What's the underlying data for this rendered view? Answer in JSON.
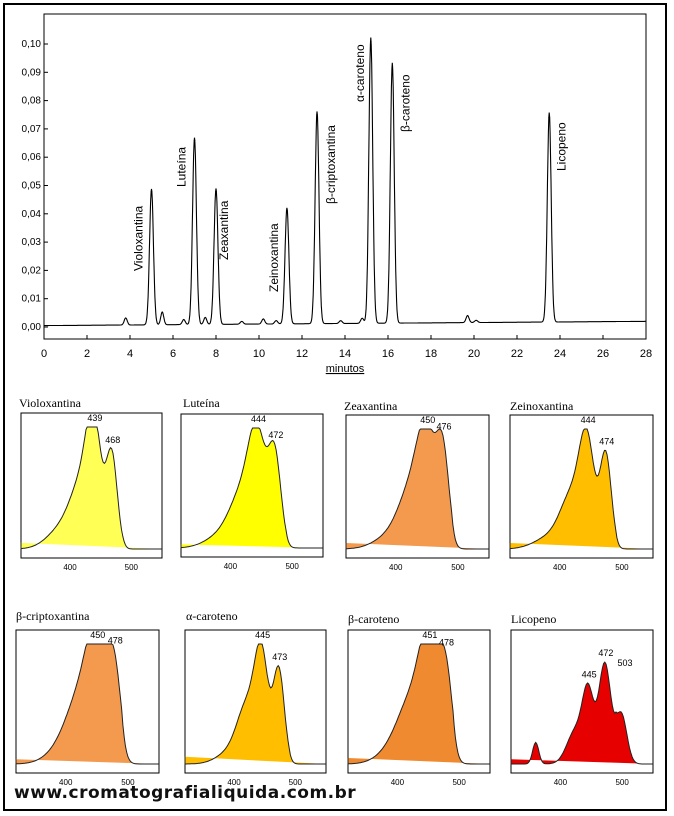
{
  "chart_data": {
    "type": "line",
    "xlabel": "minutos",
    "x_ticks": [
      "0",
      "2",
      "4",
      "6",
      "8",
      "10",
      "12",
      "14",
      "16",
      "18",
      "20",
      "22",
      "24",
      "26",
      "28"
    ],
    "y_ticks": [
      "0,00",
      "0,01",
      "0,02",
      "0,03",
      "0,04",
      "0,05",
      "0,06",
      "0,07",
      "0,08",
      "0,09",
      "0,10"
    ],
    "xlim": [
      0,
      28
    ],
    "ylim": [
      0,
      0.1
    ],
    "baseline": 0.0005,
    "peaks": [
      {
        "name": "Violoxantina",
        "x": 5.0,
        "y": 0.048,
        "w": 0.09
      },
      {
        "name": "Luteína",
        "x": 7.0,
        "y": 0.066,
        "w": 0.09
      },
      {
        "name": "Zeaxantina",
        "x": 8.0,
        "y": 0.048,
        "w": 0.09
      },
      {
        "name": "Zeinoxantina",
        "x": 11.3,
        "y": 0.041,
        "w": 0.09
      },
      {
        "name": "β-criptoxantina",
        "x": 12.7,
        "y": 0.075,
        "w": 0.09
      },
      {
        "name": "α-caroteno",
        "x": 15.2,
        "y": 0.101,
        "w": 0.09
      },
      {
        "name": "β-caroteno",
        "x": 16.2,
        "y": 0.092,
        "w": 0.09
      },
      {
        "name": "Licopeno",
        "x": 23.5,
        "y": 0.074,
        "w": 0.09
      }
    ],
    "minor_peaks": [
      {
        "x": 3.8,
        "y": 0.0025
      },
      {
        "x": 5.5,
        "y": 0.0045
      },
      {
        "x": 6.5,
        "y": 0.0018
      },
      {
        "x": 7.5,
        "y": 0.0025
      },
      {
        "x": 9.2,
        "y": 0.001
      },
      {
        "x": 10.2,
        "y": 0.0018
      },
      {
        "x": 10.8,
        "y": 0.0012
      },
      {
        "x": 13.8,
        "y": 0.001
      },
      {
        "x": 14.8,
        "y": 0.0018
      },
      {
        "x": 19.7,
        "y": 0.0025
      },
      {
        "x": 20.1,
        "y": 0.0008
      }
    ]
  },
  "spectra": [
    {
      "name": "Violoxantina",
      "color": "#ffff55",
      "peaks": [
        "439",
        "468"
      ],
      "x_ticks": [
        "400",
        "500"
      ],
      "bands": [
        {
          "nm": 439,
          "a": 0.88,
          "w": 12
        },
        {
          "nm": 468,
          "a": 0.76,
          "w": 9
        },
        {
          "nm": 420,
          "a": 0.45,
          "w": 18
        },
        {
          "nm": 390,
          "a": 0.18,
          "w": 25
        }
      ],
      "end_a": 0.05
    },
    {
      "name": "Luteína",
      "color": "#ffff00",
      "peaks": [
        "444",
        "472"
      ],
      "x_ticks": [
        "400",
        "500"
      ],
      "bands": [
        {
          "nm": 444,
          "a": 0.82,
          "w": 14
        },
        {
          "nm": 472,
          "a": 0.74,
          "w": 10
        },
        {
          "nm": 420,
          "a": 0.42,
          "w": 20
        },
        {
          "nm": 385,
          "a": 0.1,
          "w": 25
        }
      ],
      "end_a": 0.03
    },
    {
      "name": "Zeaxantina",
      "color": "#f39a4e",
      "peaks": [
        "450",
        "476"
      ],
      "x_ticks": [
        "400",
        "500"
      ],
      "bands": [
        {
          "nm": 450,
          "a": 0.84,
          "w": 15
        },
        {
          "nm": 476,
          "a": 0.74,
          "w": 10
        },
        {
          "nm": 425,
          "a": 0.45,
          "w": 20
        },
        {
          "nm": 390,
          "a": 0.1,
          "w": 25
        }
      ],
      "end_a": 0.05
    },
    {
      "name": "Zeinoxantina",
      "color": "#ffbe00",
      "peaks": [
        "444",
        "474"
      ],
      "x_ticks": [
        "400",
        "500"
      ],
      "bands": [
        {
          "nm": 444,
          "a": 0.82,
          "w": 12
        },
        {
          "nm": 474,
          "a": 0.78,
          "w": 9
        },
        {
          "nm": 420,
          "a": 0.42,
          "w": 18
        },
        {
          "nm": 385,
          "a": 0.1,
          "w": 25
        }
      ],
      "end_a": 0.05
    },
    {
      "name": "β-criptoxantina",
      "color": "#f39a4e",
      "peaks": [
        "450",
        "478"
      ],
      "x_ticks": [
        "400",
        "500"
      ],
      "bands": [
        {
          "nm": 450,
          "a": 0.86,
          "w": 16
        },
        {
          "nm": 478,
          "a": 0.74,
          "w": 11
        },
        {
          "nm": 425,
          "a": 0.5,
          "w": 22
        },
        {
          "nm": 395,
          "a": 0.12,
          "w": 25
        }
      ],
      "end_a": 0.04
    },
    {
      "name": "α-caroteno",
      "color": "#ffbe00",
      "peaks": [
        "445",
        "473"
      ],
      "x_ticks": [
        "400",
        "500"
      ],
      "bands": [
        {
          "nm": 445,
          "a": 0.84,
          "w": 11
        },
        {
          "nm": 473,
          "a": 0.78,
          "w": 9
        },
        {
          "nm": 422,
          "a": 0.45,
          "w": 16
        },
        {
          "nm": 395,
          "a": 0.1,
          "w": 22
        }
      ],
      "end_a": 0.06
    },
    {
      "name": "β-caroteno",
      "color": "#f08a30",
      "peaks": [
        "451",
        "478"
      ],
      "x_ticks": [
        "400",
        "500"
      ],
      "bands": [
        {
          "nm": 451,
          "a": 0.86,
          "w": 15
        },
        {
          "nm": 478,
          "a": 0.74,
          "w": 11
        },
        {
          "nm": 425,
          "a": 0.48,
          "w": 22
        },
        {
          "nm": 395,
          "a": 0.12,
          "w": 25
        }
      ],
      "end_a": 0.05
    },
    {
      "name": "Licopeno",
      "color": "#e60000",
      "peaks": [
        "445",
        "472",
        "503"
      ],
      "x_ticks": [
        "400",
        "500"
      ],
      "bands": [
        {
          "nm": 445,
          "a": 0.55,
          "w": 9
        },
        {
          "nm": 472,
          "a": 0.84,
          "w": 10
        },
        {
          "nm": 503,
          "a": 0.76,
          "w": 9
        },
        {
          "nm": 425,
          "a": 0.28,
          "w": 14
        },
        {
          "nm": 360,
          "a": 0.18,
          "w": 5
        }
      ],
      "end_a": 0.04
    }
  ],
  "footer": {
    "website": "www.cromatografialiquida.com.br"
  }
}
